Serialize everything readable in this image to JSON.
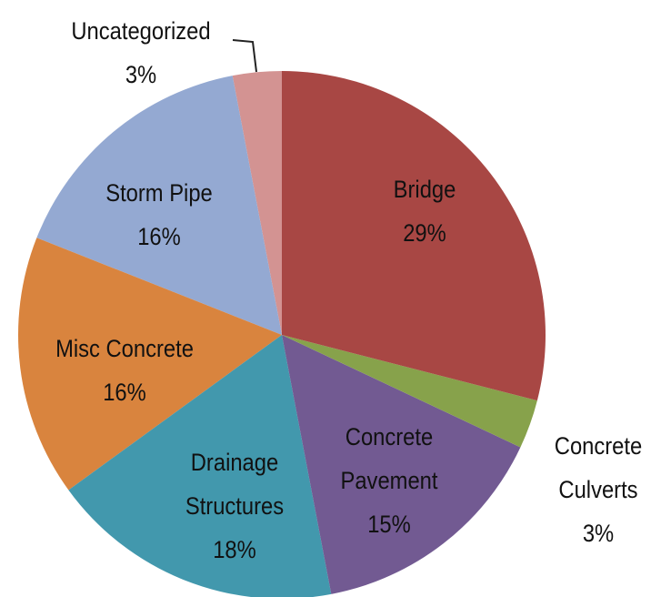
{
  "chart_data": {
    "type": "pie",
    "categories": [
      "Bridge",
      "Concrete Culverts",
      "Concrete Pavement",
      "Drainage Structures",
      "Misc Concrete",
      "Storm Pipe",
      "Uncategorized"
    ],
    "values": [
      29,
      3,
      15,
      18,
      16,
      16,
      3
    ],
    "value_labels": [
      "29%",
      "3%",
      "15%",
      "18%",
      "16%",
      "16%",
      "3%"
    ],
    "colors": [
      "#a84744",
      "#87a24b",
      "#725a92",
      "#4298ad",
      "#d9843e",
      "#94a9d2",
      "#d39392"
    ]
  }
}
